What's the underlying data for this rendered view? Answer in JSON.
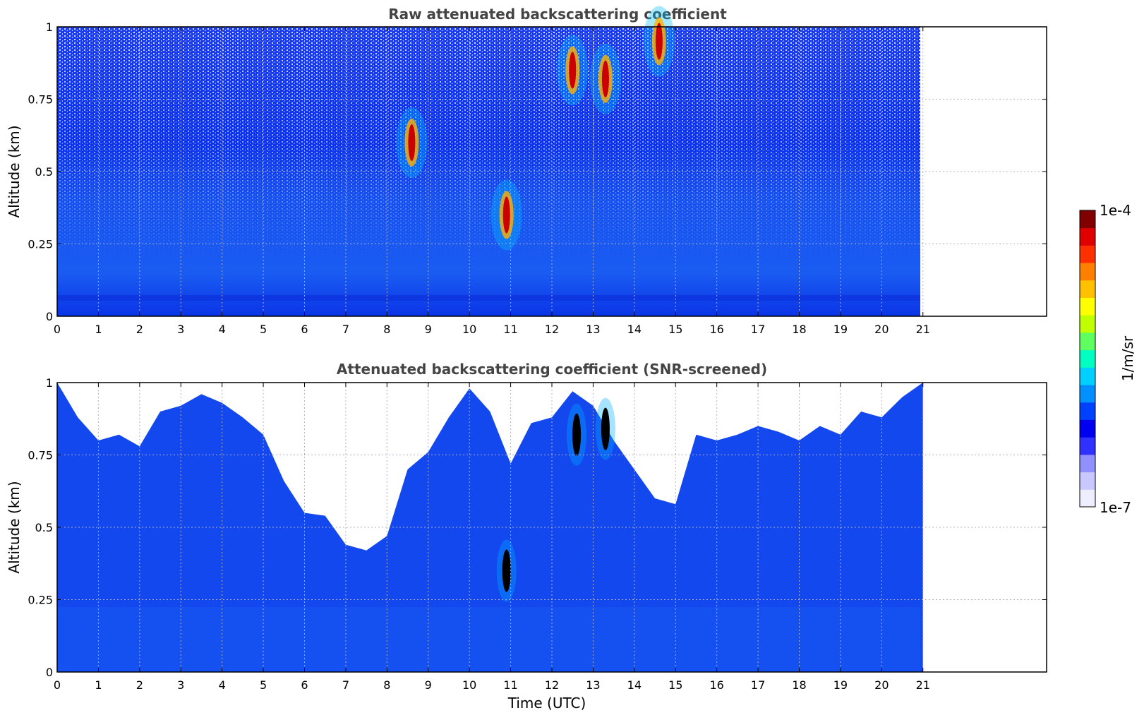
{
  "chart_data": [
    {
      "type": "heatmap",
      "title": "Raw attenuated backscattering coefficient",
      "xlabel": "",
      "ylabel": "Altitude (km)",
      "xlim": [
        0,
        24
      ],
      "ylim": [
        0,
        1
      ],
      "x_ticks": [
        0,
        1,
        2,
        3,
        4,
        5,
        6,
        7,
        8,
        9,
        10,
        11,
        12,
        13,
        14,
        15,
        16,
        17,
        18,
        19,
        20,
        21
      ],
      "x_tick_labels": [
        "0",
        "1",
        "2",
        "3",
        "4",
        "5",
        "6",
        "7",
        "8",
        "9",
        "10",
        "11",
        "12",
        "13",
        "14",
        "15",
        "16",
        "17",
        "18",
        "19",
        "20",
        "21"
      ],
      "y_ticks": [
        0,
        0.25,
        0.5,
        0.75,
        1
      ],
      "y_tick_labels": [
        "0",
        "0.25",
        "0.5",
        "0.75",
        "1"
      ],
      "data_x_range": [
        0,
        21
      ],
      "grid": true,
      "colorscale": "log",
      "features": [
        {
          "time_utc": 10.9,
          "altitude_km": 0.35,
          "value": "1e-4"
        },
        {
          "time_utc": 13.3,
          "altitude_km": 0.82,
          "value": "1e-4"
        },
        {
          "time_utc": 12.5,
          "altitude_km": 0.85,
          "value": "1e-4"
        },
        {
          "time_utc": 14.6,
          "altitude_km": 0.95,
          "value": "1e-4"
        },
        {
          "time_utc": 8.6,
          "altitude_km": 0.6,
          "value": "5e-5"
        }
      ]
    },
    {
      "type": "heatmap",
      "title": "Attenuated backscattering coefficient (SNR-screened)",
      "xlabel": "Time (UTC)",
      "ylabel": "Altitude (km)",
      "xlim": [
        0,
        24
      ],
      "ylim": [
        0,
        1
      ],
      "x_ticks": [
        0,
        1,
        2,
        3,
        4,
        5,
        6,
        7,
        8,
        9,
        10,
        11,
        12,
        13,
        14,
        15,
        16,
        17,
        18,
        19,
        20,
        21
      ],
      "x_tick_labels": [
        "0",
        "1",
        "2",
        "3",
        "4",
        "5",
        "6",
        "7",
        "8",
        "9",
        "10",
        "11",
        "12",
        "13",
        "14",
        "15",
        "16",
        "17",
        "18",
        "19",
        "20",
        "21"
      ],
      "y_ticks": [
        0,
        0.25,
        0.5,
        0.75,
        1
      ],
      "y_tick_labels": [
        "0",
        "0.25",
        "0.5",
        "0.75",
        "1"
      ],
      "data_x_range": [
        0,
        21
      ],
      "grid": true,
      "colorscale": "log",
      "screened_top_profile": {
        "time_utc": [
          0,
          0.5,
          1,
          1.5,
          2,
          2.5,
          3,
          3.5,
          4,
          4.5,
          5,
          5.5,
          6,
          6.5,
          7,
          7.5,
          8,
          8.5,
          9,
          9.5,
          10,
          10.5,
          11,
          11.5,
          12,
          12.5,
          13,
          13.5,
          14,
          14.5,
          15,
          15.5,
          16,
          16.5,
          17,
          17.5,
          18,
          18.5,
          19,
          19.5,
          20,
          20.5,
          21
        ],
        "altitude_km": [
          1.0,
          0.88,
          0.8,
          0.82,
          0.78,
          0.9,
          0.92,
          0.96,
          0.93,
          0.88,
          0.82,
          0.66,
          0.55,
          0.54,
          0.44,
          0.42,
          0.47,
          0.7,
          0.76,
          0.88,
          0.98,
          0.9,
          0.72,
          0.86,
          0.88,
          0.97,
          0.92,
          0.8,
          0.7,
          0.6,
          0.58,
          0.82,
          0.8,
          0.82,
          0.85,
          0.83,
          0.8,
          0.85,
          0.82,
          0.9,
          0.88,
          0.95,
          1.0
        ]
      }
    }
  ],
  "colorbar": {
    "label": "1/m/sr",
    "max_label": "1e-4",
    "min_label": "1e-7",
    "colors": [
      "#eeeeff",
      "#c8c8ff",
      "#9090ff",
      "#3030ff",
      "#0000f0",
      "#0040ff",
      "#0090ff",
      "#00d0ff",
      "#00ffc0",
      "#60ff60",
      "#c0ff00",
      "#ffff00",
      "#ffc000",
      "#ff8000",
      "#ff3000",
      "#e00000",
      "#800000"
    ]
  },
  "colors": {
    "no_data": "#ffffff",
    "background_field": "#1040ee",
    "lower_field": "#1a5cf0",
    "surface_band": "#0a30e0"
  }
}
